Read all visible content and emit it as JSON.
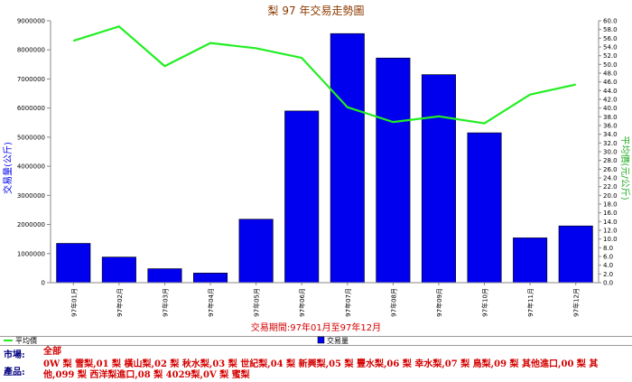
{
  "chart_data": {
    "type": "bar+line",
    "title": "梨 97 年交易走勢圖",
    "categories": [
      "97年01月",
      "97年02月",
      "97年03月",
      "97年04月",
      "97年05月",
      "97年06月",
      "97年07月",
      "97年08月",
      "97年09月",
      "97年10月",
      "97年11月",
      "97年12月"
    ],
    "series": [
      {
        "name": "交易量",
        "axis": "left",
        "type": "bar",
        "color": "#0000ee",
        "values": [
          1350000,
          880000,
          480000,
          330000,
          2180000,
          5900000,
          8560000,
          7720000,
          7150000,
          5150000,
          1540000,
          1950000
        ]
      },
      {
        "name": "平均價",
        "axis": "right",
        "type": "line",
        "color": "#22ee22",
        "values": [
          55.4,
          58.7,
          49.6,
          54.9,
          53.7,
          51.5,
          40.2,
          36.8,
          38.1,
          36.5,
          43.1,
          45.4
        ]
      }
    ],
    "ylabel_left": "交易量(公斤)",
    "ylabel_right": "平均價(元/公斤)",
    "ylim_left": [
      0,
      9000000
    ],
    "yticks_left": [
      0,
      1000000,
      2000000,
      3000000,
      4000000,
      5000000,
      6000000,
      7000000,
      8000000,
      9000000
    ],
    "ylim_right": [
      0,
      60
    ],
    "right_tick_step": 2,
    "xlabel": "交易期間:97年01月至97年12月",
    "legend_position": "bottom",
    "grid": false
  },
  "info": {
    "market_label": "市場:",
    "market_value": "全部",
    "product_label": "產品:",
    "product_line1": "0W 梨 雪梨,01 梨 橫山梨,02 梨 秋水梨,03 梨 世紀梨,04 梨 新興梨,05 梨 豐水梨,06 梨 幸水梨,07 梨 鳥梨,09 梨 其他進口,00 梨 其",
    "product_line2": "他,099 梨 西洋梨進口,08 梨 4029梨,0V 梨 蜜梨"
  }
}
